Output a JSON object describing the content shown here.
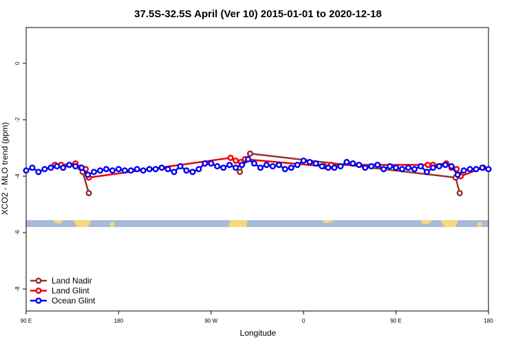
{
  "chart_data": {
    "type": "line",
    "title": "37.5S-32.5S April (Ver 10)   2015-01-01 to 2020-12-18",
    "x_label": "Longitude",
    "y_label": "XCO2 - MLO trend (ppm)",
    "xlim": [
      90,
      540
    ],
    "ylim": [
      -8.78,
      1.27
    ],
    "xticks": [
      {
        "value": 90,
        "label": "90 E"
      },
      180,
      {
        "value": 270,
        "label": "90 W"
      },
      {
        "value": 360,
        "label": "0"
      },
      {
        "value": 450,
        "label": "90 E"
      },
      {
        "value": 540,
        "label": "180"
      }
    ],
    "yticks": [
      0,
      -2,
      -4,
      -6,
      -8
    ],
    "legend": "bottom-left",
    "series": [
      {
        "name": "Land Nadir",
        "color": "#9b2f2f",
        "x": [
          145,
          151,
          293,
          298,
          303,
          308,
          508,
          512
        ],
        "values": [
          -3.85,
          -4.6,
          null,
          -3.85,
          -3.45,
          -3.2,
          -4.05,
          -4.6
        ]
      },
      {
        "name": "Land Glint",
        "color": "#ee0000",
        "x": [
          118,
          124,
          138,
          143,
          148,
          151,
          289,
          294,
          299,
          303,
          380,
          387,
          481,
          486,
          499,
          504,
          509,
          513,
          535
        ],
        "values": [
          -3.6,
          -3.6,
          -3.55,
          -3.7,
          -3.75,
          -4.05,
          -3.35,
          -3.45,
          -3.5,
          -3.4,
          -3.65,
          -3.6,
          -3.6,
          -3.6,
          -3.55,
          -3.7,
          -3.75,
          -4.0,
          -3.7
        ]
      },
      {
        "name": "Ocean Glint",
        "color": "#0000ee",
        "x": [
          90,
          96,
          102,
          108,
          114,
          120,
          126,
          132,
          138,
          144,
          150,
          156,
          162,
          168,
          174,
          180,
          186,
          192,
          198,
          204,
          210,
          216,
          222,
          228,
          234,
          240,
          246,
          252,
          258,
          264,
          270,
          276,
          282,
          288,
          294,
          300,
          306,
          312,
          318,
          324,
          330,
          336,
          342,
          348,
          354,
          360,
          366,
          372,
          378,
          384,
          390,
          396,
          402,
          408,
          414,
          420,
          426,
          432,
          438,
          444,
          450,
          456,
          462,
          468,
          474,
          480,
          486,
          492,
          498,
          504,
          510,
          516,
          522,
          528,
          534,
          540
        ],
        "values": [
          -3.8,
          -3.7,
          -3.85,
          -3.75,
          -3.7,
          -3.65,
          -3.7,
          -3.6,
          -3.65,
          -3.7,
          -3.95,
          -3.85,
          -3.8,
          -3.75,
          -3.8,
          -3.75,
          -3.8,
          -3.8,
          -3.75,
          -3.8,
          -3.75,
          -3.75,
          -3.7,
          -3.75,
          -3.85,
          -3.65,
          -3.8,
          -3.85,
          -3.75,
          -3.55,
          -3.55,
          -3.65,
          -3.7,
          -3.6,
          -3.7,
          -3.6,
          -3.4,
          -3.55,
          -3.7,
          -3.6,
          -3.65,
          -3.6,
          -3.75,
          -3.7,
          -3.6,
          -3.45,
          -3.5,
          -3.55,
          -3.65,
          -3.7,
          -3.7,
          -3.65,
          -3.5,
          -3.55,
          -3.6,
          -3.7,
          -3.65,
          -3.6,
          -3.75,
          -3.65,
          -3.7,
          -3.75,
          -3.7,
          -3.75,
          -3.65,
          -3.85,
          -3.7,
          -3.65,
          -3.6,
          -3.65,
          -3.95,
          -3.8,
          -3.75,
          -3.75,
          -3.7,
          -3.75
        ]
      }
    ]
  }
}
